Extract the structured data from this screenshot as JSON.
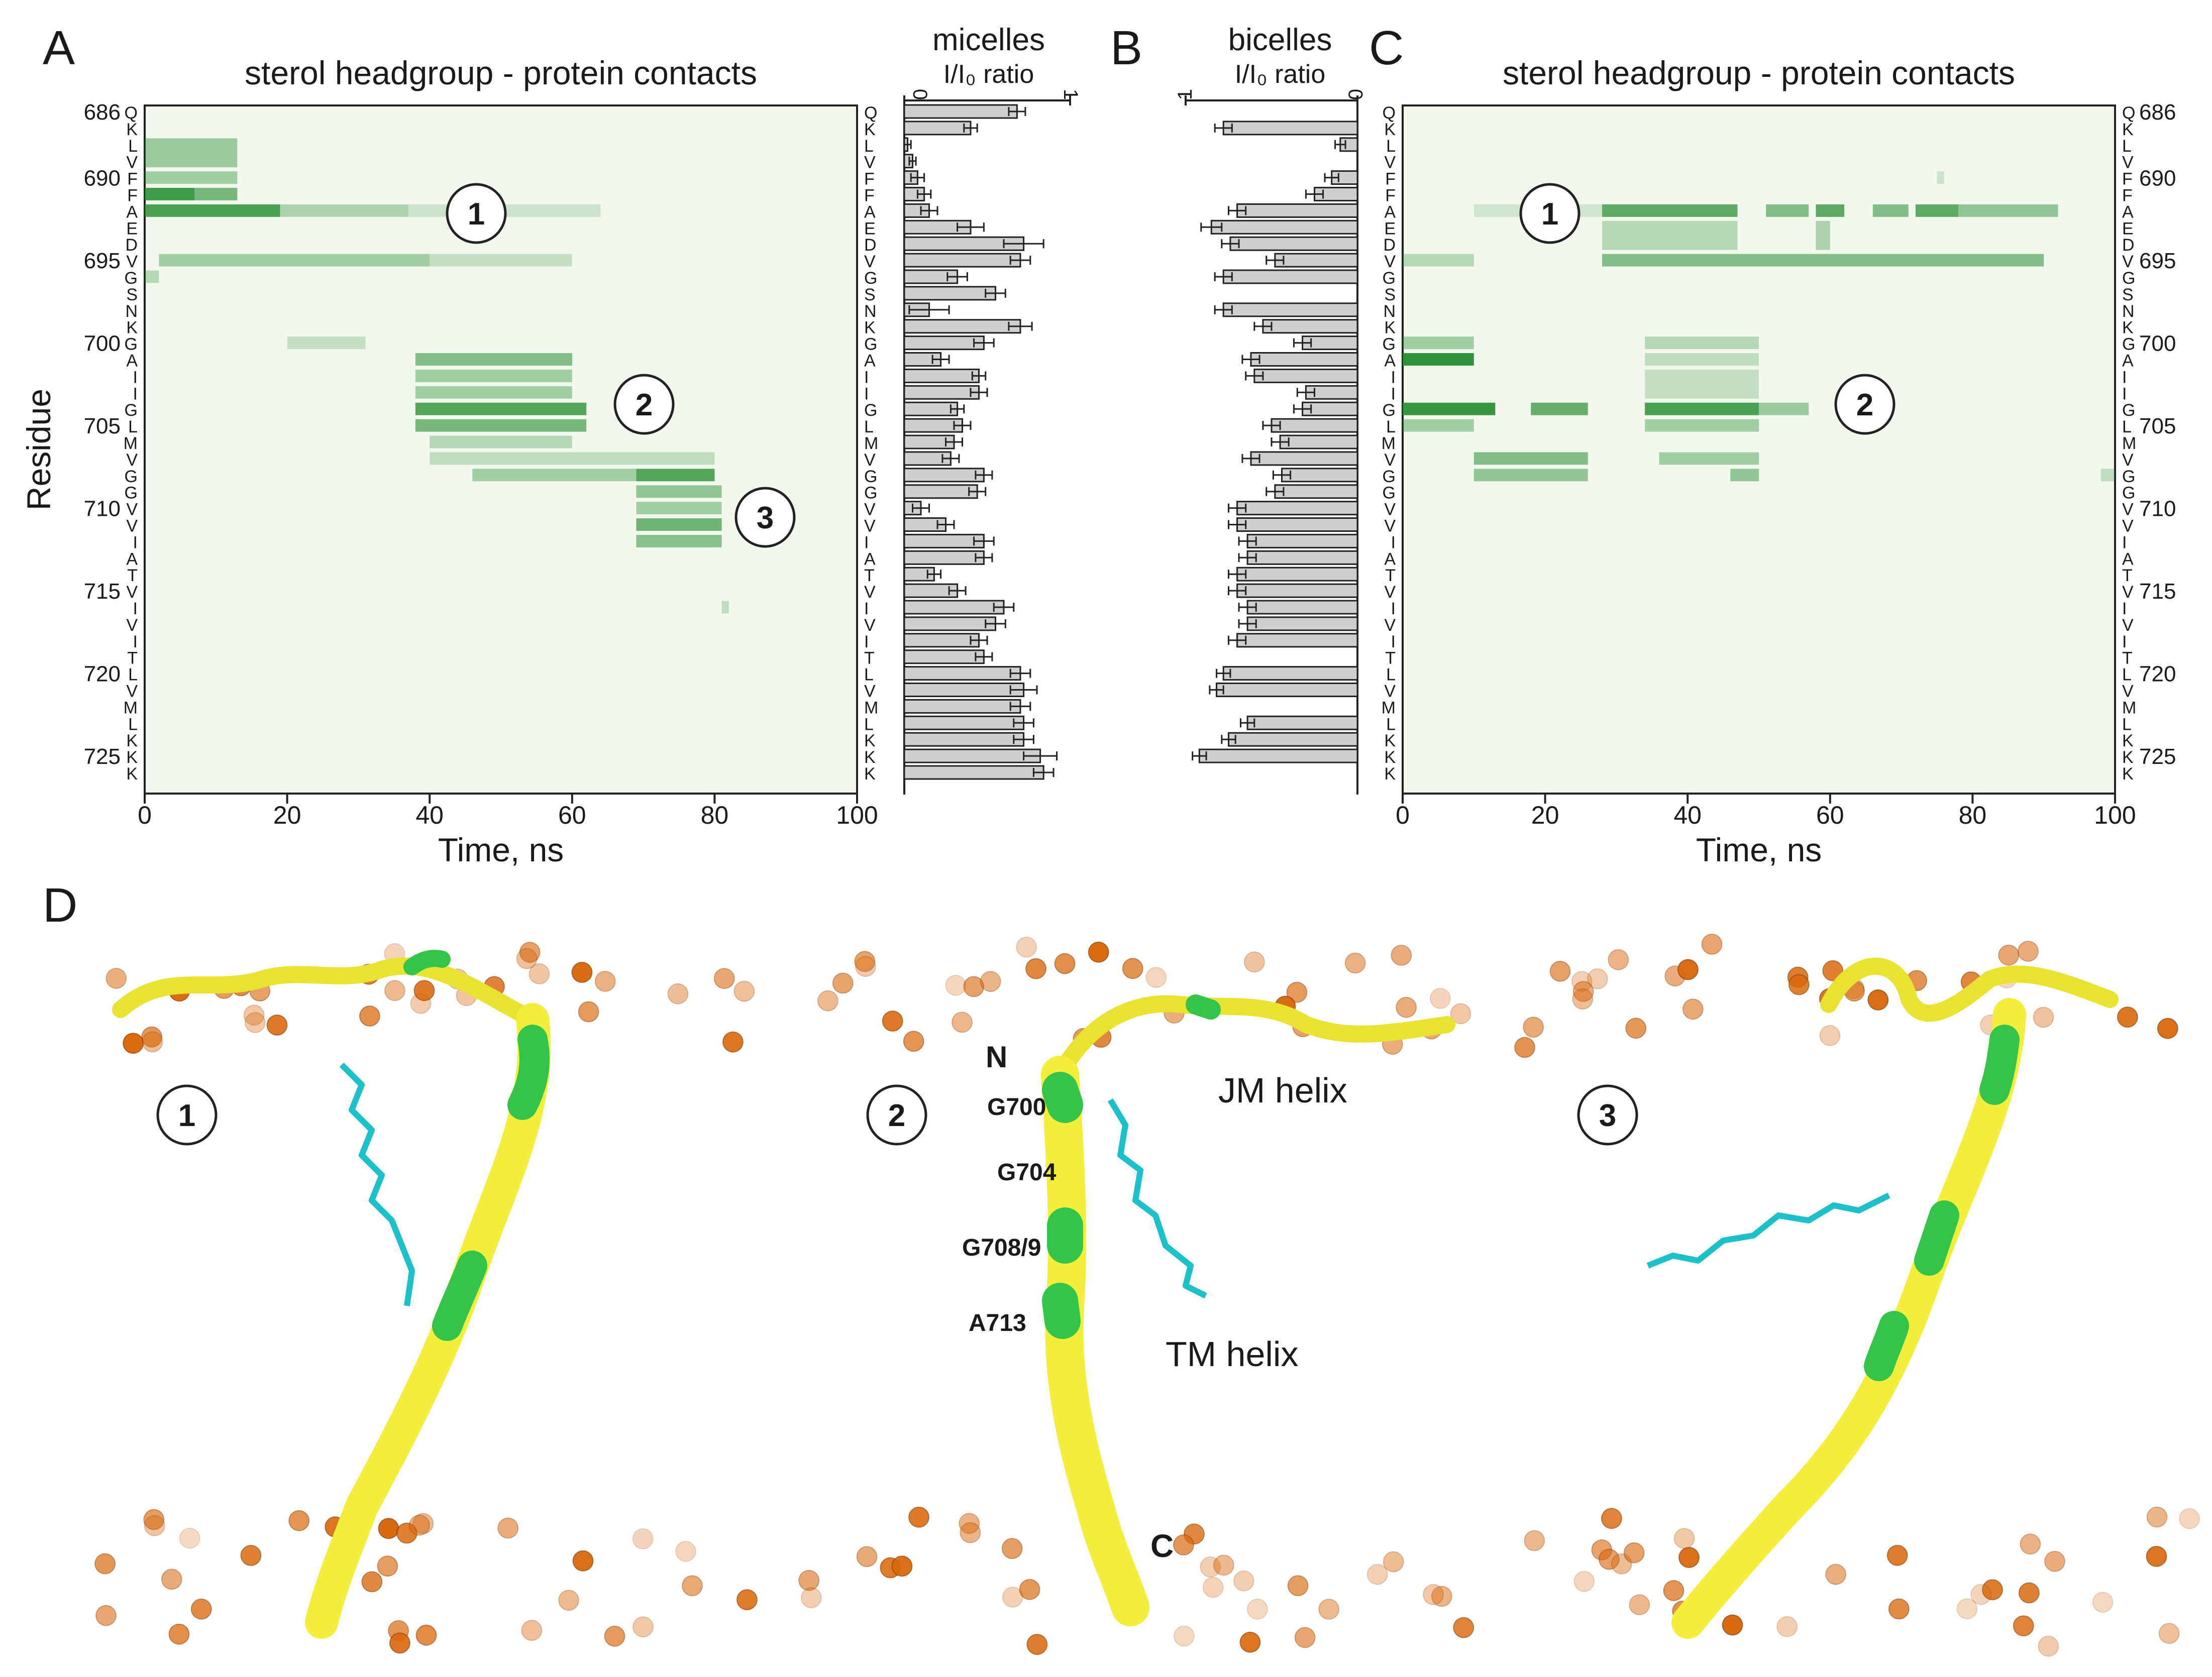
{
  "panel_labels": {
    "a": "A",
    "b": "B",
    "c": "C",
    "d": "D"
  },
  "colors": {
    "contact_green": "#1f8a2a",
    "bar_gray": "#cfcfcf",
    "helix_yellow": "#f2ee3a",
    "helix_green": "#35c44a",
    "sterol_cyan": "#1cc0c8",
    "phosphate_orange": "#d9680c"
  },
  "residues": {
    "numbers": [
      "686",
      "690",
      "695",
      "700",
      "705",
      "710",
      "715",
      "720",
      "725"
    ],
    "letters": [
      "Q",
      "K",
      "L",
      "V",
      "F",
      "F",
      "A",
      "E",
      "D",
      "V",
      "G",
      "S",
      "N",
      "K",
      "G",
      "A",
      "I",
      "I",
      "G",
      "L",
      "M",
      "V",
      "G",
      "G",
      "V",
      "V",
      "I",
      "A",
      "T",
      "V",
      "I",
      "V",
      "I",
      "T",
      "L",
      "V",
      "M",
      "L",
      "K",
      "K",
      "K"
    ]
  },
  "panel_a": {
    "title": "sterol headgroup - protein contacts",
    "ylabel": "Residue",
    "xlabel": "Time, ns",
    "xticks": [
      "0",
      "20",
      "40",
      "60",
      "80",
      "100"
    ],
    "events": [
      "1",
      "2",
      "3"
    ]
  },
  "panel_micelles": {
    "title": "micelles",
    "subtitle": "I/I₀ ratio",
    "tick0": "0",
    "tick1": "1"
  },
  "panel_bicelles": {
    "title": "bicelles",
    "subtitle": "I/I₀ ratio",
    "tick0": "0",
    "tick1": "1"
  },
  "panel_c": {
    "title": "sterol headgroup - protein contacts",
    "xlabel": "Time, ns",
    "xticks": [
      "0",
      "20",
      "40",
      "60",
      "80",
      "100"
    ],
    "events": [
      "1",
      "2"
    ]
  },
  "panel_d": {
    "events": [
      "1",
      "2",
      "3"
    ],
    "labels": {
      "n_term": "N",
      "c_term": "C",
      "jm_helix": "JM helix",
      "tm_helix": "TM helix",
      "g700": "G700",
      "g704": "G704",
      "g708": "G708/9",
      "a713": "A713"
    }
  },
  "chart_data": [
    {
      "type": "heatmap",
      "title": "sterol headgroup - protein contacts (panel A)",
      "xlabel": "Time, ns",
      "ylabel": "Residue",
      "xlim": [
        0,
        100
      ],
      "ylim": [
        686,
        726
      ],
      "contacts": [
        {
          "res": [
            688,
            689
          ],
          "t": [
            0,
            13
          ],
          "v": 0.35
        },
        {
          "res": [
            690,
            690
          ],
          "t": [
            0,
            13
          ],
          "v": 0.3
        },
        {
          "res": [
            691,
            691
          ],
          "t": [
            0,
            7
          ],
          "v": 0.85
        },
        {
          "res": [
            691,
            691
          ],
          "t": [
            7,
            13
          ],
          "v": 0.55
        },
        {
          "res": [
            692,
            692
          ],
          "t": [
            0,
            19
          ],
          "v": 0.8
        },
        {
          "res": [
            692,
            692
          ],
          "t": [
            19,
            37
          ],
          "v": 0.25
        },
        {
          "res": [
            692,
            692
          ],
          "t": [
            37,
            64
          ],
          "v": 0.08
        },
        {
          "res": [
            695,
            695
          ],
          "t": [
            2,
            40
          ],
          "v": 0.3
        },
        {
          "res": [
            695,
            695
          ],
          "t": [
            40,
            60
          ],
          "v": 0.12
        },
        {
          "res": [
            696,
            696
          ],
          "t": [
            0,
            2
          ],
          "v": 0.2
        },
        {
          "res": [
            700,
            700
          ],
          "t": [
            20,
            31
          ],
          "v": 0.12
        },
        {
          "res": [
            701,
            701
          ],
          "t": [
            38,
            60
          ],
          "v": 0.5
        },
        {
          "res": [
            702,
            702
          ],
          "t": [
            38,
            60
          ],
          "v": 0.3
        },
        {
          "res": [
            703,
            703
          ],
          "t": [
            38,
            60
          ],
          "v": 0.3
        },
        {
          "res": [
            704,
            704
          ],
          "t": [
            38,
            62
          ],
          "v": 0.75
        },
        {
          "res": [
            705,
            705
          ],
          "t": [
            38,
            62
          ],
          "v": 0.55
        },
        {
          "res": [
            706,
            706
          ],
          "t": [
            40,
            60
          ],
          "v": 0.2
        },
        {
          "res": [
            707,
            707
          ],
          "t": [
            40,
            80
          ],
          "v": 0.15
        },
        {
          "res": [
            708,
            708
          ],
          "t": [
            46,
            69
          ],
          "v": 0.3
        },
        {
          "res": [
            708,
            708
          ],
          "t": [
            69,
            80
          ],
          "v": 0.75
        },
        {
          "res": [
            709,
            709
          ],
          "t": [
            69,
            81
          ],
          "v": 0.4
        },
        {
          "res": [
            710,
            710
          ],
          "t": [
            69,
            81
          ],
          "v": 0.3
        },
        {
          "res": [
            711,
            711
          ],
          "t": [
            69,
            81
          ],
          "v": 0.6
        },
        {
          "res": [
            712,
            712
          ],
          "t": [
            69,
            81
          ],
          "v": 0.45
        },
        {
          "res": [
            716,
            716
          ],
          "t": [
            81,
            82
          ],
          "v": 0.15
        }
      ]
    },
    {
      "type": "bar",
      "title": "micelles",
      "xlabel": "I/I₀ ratio",
      "xlim": [
        0,
        1
      ],
      "categories": [
        "686 Q",
        "687 K",
        "688 L",
        "689 V",
        "690 F",
        "691 F",
        "692 A",
        "693 E",
        "694 D",
        "695 V",
        "696 G",
        "697 S",
        "698 N",
        "699 K",
        "700 G",
        "701 A",
        "702 I",
        "703 I",
        "704 G",
        "705 L",
        "706 M",
        "707 V",
        "708 G",
        "709 G",
        "710 V",
        "711 V",
        "712 I",
        "713 A",
        "714 T",
        "715 V",
        "716 I",
        "717 V",
        "718 I",
        "719 T",
        "720 L",
        "721 V",
        "722 M",
        "723 L",
        "724 K",
        "725 K",
        "726 K"
      ],
      "values": [
        0.68,
        0.4,
        0.02,
        0.05,
        0.08,
        0.12,
        0.15,
        0.4,
        0.72,
        0.7,
        0.32,
        0.55,
        0.15,
        0.7,
        0.48,
        0.22,
        0.45,
        0.45,
        0.32,
        0.35,
        0.3,
        0.28,
        0.48,
        0.44,
        0.1,
        0.25,
        0.48,
        0.48,
        0.18,
        0.32,
        0.6,
        0.55,
        0.45,
        0.48,
        0.7,
        0.72,
        0.7,
        0.72,
        0.72,
        0.82,
        0.84
      ],
      "errors": [
        0.05,
        0.04,
        0.02,
        0.02,
        0.04,
        0.04,
        0.05,
        0.08,
        0.12,
        0.06,
        0.06,
        0.06,
        0.12,
        0.07,
        0.06,
        0.05,
        0.04,
        0.05,
        0.04,
        0.05,
        0.05,
        0.05,
        0.05,
        0.05,
        0.05,
        0.05,
        0.06,
        0.05,
        0.04,
        0.05,
        0.06,
        0.06,
        0.05,
        0.05,
        0.06,
        0.08,
        0.06,
        0.06,
        0.06,
        0.1,
        0.06
      ]
    },
    {
      "type": "bar",
      "title": "bicelles",
      "xlabel": "I/I₀ ratio",
      "xlim": [
        0,
        1
      ],
      "note": "axis reversed (1 left, 0 right); bars extend leftward; missing values are null",
      "categories": [
        "686 Q",
        "687 K",
        "688 L",
        "689 V",
        "690 F",
        "691 F",
        "692 A",
        "693 E",
        "694 D",
        "695 V",
        "696 G",
        "697 S",
        "698 N",
        "699 K",
        "700 G",
        "701 A",
        "702 I",
        "703 I",
        "704 G",
        "705 L",
        "706 M",
        "707 V",
        "708 G",
        "709 G",
        "710 V",
        "711 V",
        "712 I",
        "713 A",
        "714 T",
        "715 V",
        "716 I",
        "717 V",
        "718 I",
        "719 T",
        "720 L",
        "721 V",
        "722 M",
        "723 L",
        "724 K",
        "725 K",
        "726 K"
      ],
      "values": [
        null,
        0.78,
        0.1,
        null,
        0.15,
        0.25,
        0.7,
        0.85,
        0.74,
        0.48,
        0.78,
        null,
        0.78,
        0.55,
        0.32,
        0.62,
        0.6,
        0.3,
        0.32,
        0.5,
        0.45,
        0.62,
        0.44,
        0.48,
        0.7,
        0.7,
        0.64,
        0.64,
        0.7,
        0.7,
        0.64,
        0.64,
        0.7,
        null,
        0.78,
        0.82,
        null,
        0.64,
        0.75,
        0.92,
        null
      ],
      "errors": [
        null,
        0.05,
        0.03,
        null,
        0.04,
        0.05,
        0.05,
        0.06,
        0.05,
        0.05,
        0.05,
        null,
        0.05,
        0.05,
        0.05,
        0.05,
        0.05,
        0.05,
        0.05,
        0.05,
        0.05,
        0.05,
        0.05,
        0.05,
        0.05,
        0.05,
        0.05,
        0.05,
        0.05,
        0.05,
        0.05,
        0.05,
        0.05,
        null,
        0.04,
        0.04,
        null,
        0.04,
        0.04,
        0.04,
        null
      ]
    },
    {
      "type": "heatmap",
      "title": "sterol headgroup - protein contacts (panel C)",
      "xlabel": "Time, ns",
      "xlim": [
        0,
        100
      ],
      "ylim": [
        686,
        726
      ],
      "contacts": [
        {
          "res": [
            690,
            690
          ],
          "t": [
            75,
            76
          ],
          "v": 0.08
        },
        {
          "res": [
            692,
            692
          ],
          "t": [
            10,
            28
          ],
          "v": 0.06
        },
        {
          "res": [
            692,
            692
          ],
          "t": [
            28,
            47
          ],
          "v": 0.7
        },
        {
          "res": [
            692,
            692
          ],
          "t": [
            51,
            57
          ],
          "v": 0.5
        },
        {
          "res": [
            692,
            692
          ],
          "t": [
            58,
            62
          ],
          "v": 0.7
        },
        {
          "res": [
            692,
            692
          ],
          "t": [
            66,
            71
          ],
          "v": 0.5
        },
        {
          "res": [
            692,
            692
          ],
          "t": [
            72,
            78
          ],
          "v": 0.7
        },
        {
          "res": [
            692,
            692
          ],
          "t": [
            78,
            92
          ],
          "v": 0.4
        },
        {
          "res": [
            693,
            694
          ],
          "t": [
            28,
            47
          ],
          "v": 0.2
        },
        {
          "res": [
            693,
            694
          ],
          "t": [
            58,
            60
          ],
          "v": 0.25
        },
        {
          "res": [
            695,
            695
          ],
          "t": [
            0,
            10
          ],
          "v": 0.2
        },
        {
          "res": [
            695,
            695
          ],
          "t": [
            28,
            90
          ],
          "v": 0.5
        },
        {
          "res": [
            700,
            700
          ],
          "t": [
            0,
            10
          ],
          "v": 0.3
        },
        {
          "res": [
            700,
            700
          ],
          "t": [
            34,
            50
          ],
          "v": 0.2
        },
        {
          "res": [
            701,
            701
          ],
          "t": [
            0,
            10
          ],
          "v": 0.95
        },
        {
          "res": [
            701,
            701
          ],
          "t": [
            34,
            50
          ],
          "v": 0.15
        },
        {
          "res": [
            702,
            703
          ],
          "t": [
            34,
            50
          ],
          "v": 0.12
        },
        {
          "res": [
            704,
            704
          ],
          "t": [
            0,
            13
          ],
          "v": 0.9
        },
        {
          "res": [
            704,
            704
          ],
          "t": [
            18,
            26
          ],
          "v": 0.65
        },
        {
          "res": [
            704,
            704
          ],
          "t": [
            34,
            50
          ],
          "v": 0.8
        },
        {
          "res": [
            704,
            704
          ],
          "t": [
            50,
            57
          ],
          "v": 0.35
        },
        {
          "res": [
            705,
            705
          ],
          "t": [
            0,
            10
          ],
          "v": 0.3
        },
        {
          "res": [
            705,
            705
          ],
          "t": [
            34,
            50
          ],
          "v": 0.3
        },
        {
          "res": [
            707,
            707
          ],
          "t": [
            10,
            26
          ],
          "v": 0.5
        },
        {
          "res": [
            707,
            707
          ],
          "t": [
            36,
            50
          ],
          "v": 0.3
        },
        {
          "res": [
            708,
            708
          ],
          "t": [
            10,
            26
          ],
          "v": 0.4
        },
        {
          "res": [
            708,
            708
          ],
          "t": [
            46,
            50
          ],
          "v": 0.4
        },
        {
          "res": [
            708,
            708
          ],
          "t": [
            98,
            100
          ],
          "v": 0.15
        }
      ]
    }
  ]
}
